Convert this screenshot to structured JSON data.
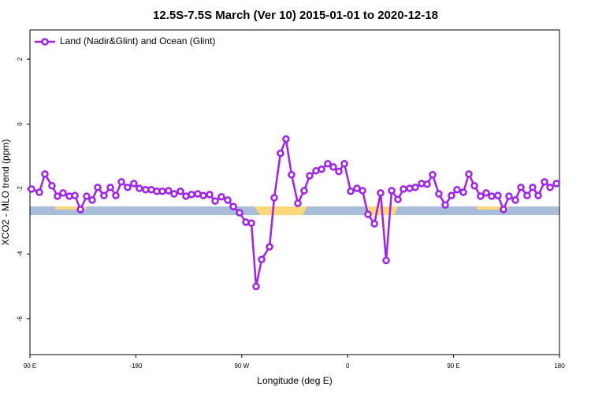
{
  "chart_data": {
    "type": "line",
    "title": "12.5S-7.5S March (Ver 10)   2015-01-01 to 2020-12-18",
    "x_label": "Longitude (deg E)",
    "y_label": "XCO2 - MLO trend (ppm)",
    "xlim": [
      -270,
      180
    ],
    "xticks": [
      {
        "value": -270,
        "label": "90 E"
      },
      -180,
      {
        "value": -90,
        "label": "90 W"
      },
      0,
      {
        "value": 90,
        "label": "90 E"
      },
      180
    ],
    "ylim": [
      -7.1,
      2.9
    ],
    "yticks": [
      2,
      0,
      -2,
      -4,
      -6
    ],
    "legend": "upper left",
    "series": [
      {
        "name": "Land (Nadir&Glint) and Ocean (Glint)",
        "color": "#a020f0",
        "x": [
          -268.7,
          -262.0,
          -257.3,
          -251.3,
          -246.6,
          -241.9,
          -236.5,
          -231.8,
          -227.1,
          -221.8,
          -217.1,
          -212.4,
          -207.1,
          -201.7,
          -197.0,
          -192.3,
          -187.0,
          -181.7,
          -177.0,
          -171.6,
          -166.9,
          -162.2,
          -157.5,
          -152.2,
          -147.5,
          -142.1,
          -137.4,
          -132.7,
          -127.4,
          -122.7,
          -117.3,
          -112.6,
          -107.3,
          -101.9,
          -97.2,
          -91.9,
          -86.5,
          -81.8,
          -77.8,
          -73.1,
          -66.4,
          -62.4,
          -57.1,
          -52.4,
          -47.7,
          -42.3,
          -37.0,
          -32.3,
          -26.9,
          -22.2,
          -16.9,
          -12.2,
          -7.5,
          -2.8,
          2.6,
          7.9,
          12.6,
          17.3,
          22.7,
          28.0,
          32.7,
          37.4,
          42.7,
          47.4,
          52.7,
          57.4,
          62.8,
          67.5,
          72.2,
          77.5,
          82.9,
          88.2,
          92.9,
          98.3,
          103.0,
          107.7,
          113.0,
          117.7,
          122.4,
          127.7,
          132.4,
          137.1,
          142.5,
          147.2,
          152.5,
          157.2,
          161.9,
          167.3,
          172.0,
          177.4
        ],
        "values": [
          -2.0,
          -2.1,
          -1.54,
          -1.9,
          -2.22,
          -2.12,
          -2.22,
          -2.2,
          -2.63,
          -2.22,
          -2.34,
          -1.95,
          -2.2,
          -1.95,
          -2.2,
          -1.78,
          -1.95,
          -1.83,
          -1.98,
          -2.02,
          -2.02,
          -2.07,
          -2.07,
          -2.05,
          -2.15,
          -2.07,
          -2.22,
          -2.17,
          -2.15,
          -2.2,
          -2.17,
          -2.37,
          -2.24,
          -2.34,
          -2.54,
          -2.73,
          -3.02,
          -3.05,
          -5.0,
          -4.17,
          -3.78,
          -2.27,
          -0.9,
          -0.46,
          -1.56,
          -2.44,
          -2.05,
          -1.59,
          -1.44,
          -1.39,
          -1.22,
          -1.32,
          -1.46,
          -1.22,
          -2.07,
          -1.98,
          -2.05,
          -2.78,
          -3.07,
          -2.12,
          -4.2,
          -2.05,
          -2.32,
          -2.0,
          -1.98,
          -1.95,
          -1.83,
          -1.85,
          -1.56,
          -2.15,
          -2.49,
          -2.2,
          -2.02,
          -2.1,
          -1.54,
          -1.9,
          -2.22,
          -2.12,
          -2.22,
          -2.2,
          -2.63,
          -2.22,
          -2.34,
          -1.95,
          -2.2,
          -1.95,
          -2.2,
          -1.78,
          -1.95,
          -1.83
        ]
      }
    ]
  }
}
